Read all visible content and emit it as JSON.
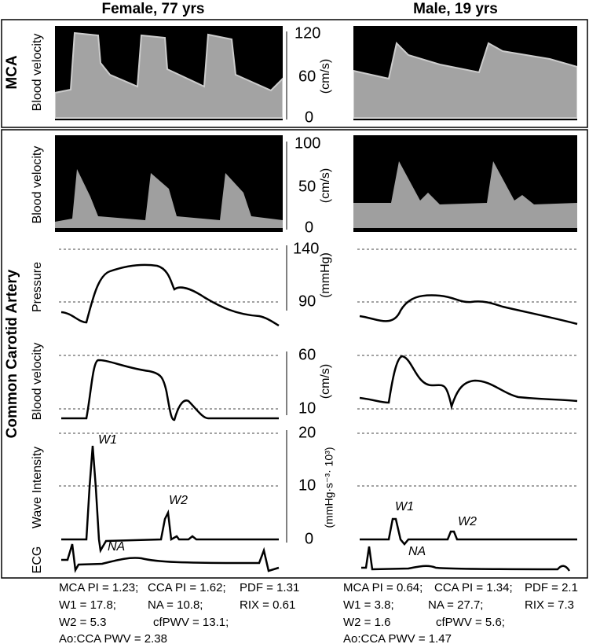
{
  "columns": [
    "Female, 77 yrs",
    "Male, 19 yrs"
  ],
  "mca": {
    "title": "MCA",
    "ylabel": "Blood velocity",
    "unit": "(cm/s)",
    "yticks": [
      120,
      60,
      0
    ]
  },
  "cca": {
    "title": "Common Carotid Artery",
    "panels": [
      {
        "ylabel": "Blood velocity",
        "unit": "(cm/s)",
        "yticks": [
          100,
          50,
          0
        ]
      },
      {
        "ylabel": "Pressure",
        "unit": "(mmHg)",
        "yticks": [
          140,
          90
        ]
      },
      {
        "ylabel": "Blood velocity",
        "unit": "(cm/s)",
        "yticks": [
          60,
          10
        ]
      },
      {
        "ylabel": "Wave Intensity",
        "unit": "(mmHg·s⁻³· 10³)",
        "yticks": [
          20,
          10,
          0
        ]
      },
      {
        "ylabel": "ECG"
      }
    ]
  },
  "annotations": {
    "female": [
      "W1",
      "W2",
      "NA"
    ],
    "male": [
      "W1",
      "W2",
      "NA"
    ]
  },
  "stats": {
    "female": [
      [
        "MCA PI = 1.23;",
        "CCA PI = 1.62;",
        "PDF = 1.31"
      ],
      [
        "W1 = 17.8;",
        "NA = 10.8;",
        "RIX = 0.61"
      ],
      [
        "W2 = 5.3",
        "cfPWV = 13.1;"
      ],
      [
        "Ao:CCA PWV = 2.38"
      ]
    ],
    "male": [
      [
        "MCA PI = 0.64;",
        "CCA PI = 1.34;",
        "PDF = 2.1"
      ],
      [
        "W1 = 3.8;",
        "NA = 27.7;",
        "RIX = 7.3"
      ],
      [
        "W2 = 1.6",
        "cfPWV = 5.6;"
      ],
      [
        "Ao:CCA PWV = 1.47"
      ]
    ]
  }
}
